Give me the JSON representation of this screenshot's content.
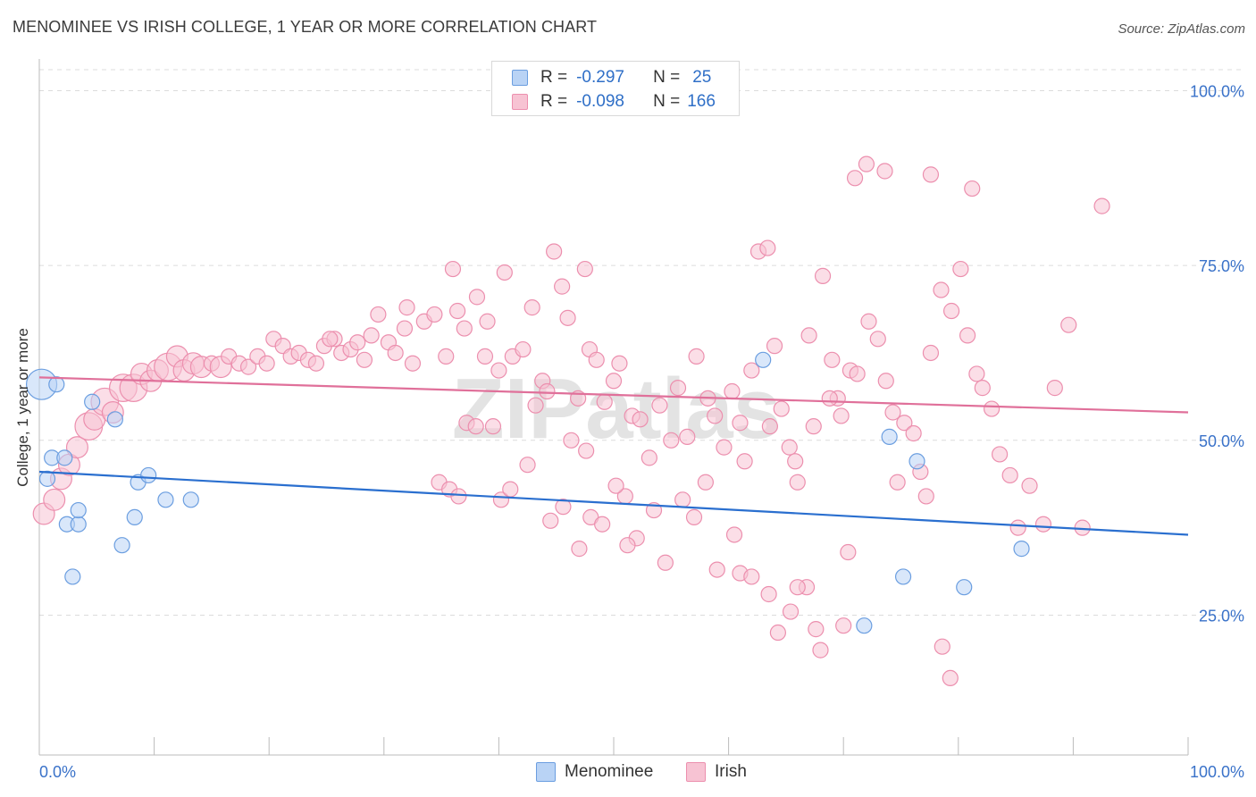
{
  "title": "MENOMINEE VS IRISH COLLEGE, 1 YEAR OR MORE CORRELATION CHART",
  "source": "Source: ZipAtlas.com",
  "watermark": "ZIPatlas",
  "legend": {
    "rows": [
      {
        "r_label": "R =",
        "r_value": "-0.297",
        "n_label": "N =",
        "n_value": "25"
      },
      {
        "r_label": "R =",
        "r_value": "-0.098",
        "n_label": "N =",
        "n_value": "166"
      }
    ]
  },
  "bottom_legend": [
    "Menominee",
    "Irish"
  ],
  "colors": {
    "menominee_fill": "#b9d3f5",
    "menominee_stroke": "#6b9ee0",
    "menominee_line": "#2a6fcf",
    "irish_fill": "#f7c3d3",
    "irish_stroke": "#ec8fae",
    "irish_line": "#e0709a",
    "tick_label": "#3a72c9"
  },
  "chart_data": {
    "type": "scatter",
    "title": "MENOMINEE VS IRISH COLLEGE, 1 YEAR OR MORE CORRELATION CHART",
    "xlabel": "",
    "ylabel": "College, 1 year or more",
    "xlim": [
      0,
      100
    ],
    "ylim": [
      5,
      103
    ],
    "x_tick_labels": [
      "0.0%",
      "100.0%"
    ],
    "y_ticks": [
      25,
      50,
      75,
      100
    ],
    "y_tick_labels": [
      "25.0%",
      "50.0%",
      "75.0%",
      "100.0%"
    ],
    "grid": true,
    "series": [
      {
        "name": "Menominee",
        "r": -0.297,
        "n": 25,
        "trend": {
          "x": [
            0,
            100
          ],
          "y": [
            45.5,
            36.5
          ]
        },
        "points": [
          [
            0.2,
            58.0,
            2.0
          ],
          [
            1.5,
            58.0,
            1.0
          ],
          [
            0.7,
            44.5,
            1.0
          ],
          [
            1.1,
            47.5,
            1.0
          ],
          [
            2.2,
            47.5,
            1.0
          ],
          [
            2.4,
            38.0,
            1.0
          ],
          [
            3.4,
            38.0,
            1.0
          ],
          [
            3.4,
            40.0,
            1.0
          ],
          [
            2.9,
            30.5,
            1.0
          ],
          [
            4.6,
            55.5,
            1.0
          ],
          [
            6.6,
            53.0,
            1.0
          ],
          [
            7.2,
            35.0,
            1.0
          ],
          [
            8.3,
            39.0,
            1.0
          ],
          [
            8.6,
            44.0,
            1.0
          ],
          [
            9.5,
            45.0,
            1.0
          ],
          [
            11.0,
            41.5,
            1.0
          ],
          [
            13.2,
            41.5,
            1.0
          ],
          [
            63.0,
            61.5,
            1.0
          ],
          [
            71.8,
            23.5,
            1.0
          ],
          [
            74.0,
            50.5,
            1.0
          ],
          [
            75.2,
            30.5,
            1.0
          ],
          [
            76.4,
            47.0,
            1.0
          ],
          [
            80.5,
            29.0,
            1.0
          ],
          [
            85.5,
            34.5,
            1.0
          ]
        ]
      },
      {
        "name": "Irish",
        "r": -0.098,
        "n": 166,
        "trend": {
          "x": [
            0,
            100
          ],
          "y": [
            59.0,
            54.0
          ]
        },
        "points": [
          [
            0.4,
            39.5,
            1.4
          ],
          [
            1.3,
            41.5,
            1.4
          ],
          [
            1.9,
            44.5,
            1.4
          ],
          [
            2.6,
            46.5,
            1.4
          ],
          [
            3.3,
            49.0,
            1.4
          ],
          [
            4.3,
            52.0,
            1.8
          ],
          [
            4.8,
            53.0,
            1.4
          ],
          [
            5.7,
            55.5,
            1.8
          ],
          [
            6.4,
            54.0,
            1.4
          ],
          [
            7.3,
            57.5,
            1.8
          ],
          [
            8.2,
            57.5,
            1.8
          ],
          [
            8.9,
            59.5,
            1.4
          ],
          [
            9.7,
            58.5,
            1.4
          ],
          [
            10.3,
            60.0,
            1.4
          ],
          [
            11.2,
            60.5,
            1.8
          ],
          [
            12.0,
            62.0,
            1.4
          ],
          [
            12.6,
            60.0,
            1.4
          ],
          [
            13.4,
            61.0,
            1.4
          ],
          [
            14.1,
            60.5,
            1.4
          ],
          [
            15.0,
            61.0,
            1.0
          ],
          [
            15.8,
            60.5,
            1.4
          ],
          [
            16.5,
            62.0,
            1.0
          ],
          [
            17.4,
            61.0,
            1.0
          ],
          [
            18.2,
            60.5,
            1.0
          ],
          [
            19.0,
            62.0,
            1.0
          ],
          [
            19.8,
            61.0,
            1.0
          ],
          [
            20.4,
            64.5,
            1.0
          ],
          [
            21.2,
            63.5,
            1.0
          ],
          [
            21.9,
            62.0,
            1.0
          ],
          [
            22.6,
            62.5,
            1.0
          ],
          [
            23.4,
            61.5,
            1.0
          ],
          [
            24.1,
            61.0,
            1.0
          ],
          [
            24.8,
            63.5,
            1.0
          ],
          [
            25.7,
            64.5,
            1.0
          ],
          [
            26.3,
            62.5,
            1.0
          ],
          [
            27.1,
            63.0,
            1.0
          ],
          [
            27.7,
            64.0,
            1.0
          ],
          [
            28.3,
            61.5,
            1.0
          ],
          [
            28.9,
            65.0,
            1.0
          ],
          [
            29.5,
            68.0,
            1.0
          ],
          [
            30.4,
            64.0,
            1.0
          ],
          [
            31.0,
            62.5,
            1.0
          ],
          [
            31.8,
            66.0,
            1.0
          ],
          [
            32.5,
            61.0,
            1.0
          ],
          [
            33.5,
            67.0,
            1.0
          ],
          [
            34.4,
            68.0,
            1.0
          ],
          [
            35.4,
            62.0,
            1.0
          ],
          [
            36.4,
            68.5,
            1.0
          ],
          [
            37.0,
            66.0,
            1.0
          ],
          [
            38.1,
            70.5,
            1.0
          ],
          [
            38.8,
            62.0,
            1.0
          ],
          [
            40.0,
            60.0,
            1.0
          ],
          [
            40.5,
            74.0,
            1.0
          ],
          [
            41.2,
            62.0,
            1.0
          ],
          [
            42.1,
            63.0,
            1.0
          ],
          [
            42.9,
            69.0,
            1.0
          ],
          [
            43.8,
            58.5,
            1.0
          ],
          [
            44.2,
            57.0,
            1.0
          ],
          [
            44.8,
            77.0,
            1.0
          ],
          [
            46.0,
            67.5,
            1.0
          ],
          [
            46.9,
            56.0,
            1.0
          ],
          [
            47.5,
            74.5,
            1.0
          ],
          [
            47.9,
            63.0,
            1.0
          ],
          [
            48.5,
            61.5,
            1.0
          ],
          [
            49.2,
            55.5,
            1.0
          ],
          [
            50.0,
            58.5,
            1.0
          ],
          [
            50.5,
            61.0,
            1.0
          ],
          [
            51.6,
            53.5,
            1.0
          ],
          [
            52.3,
            53.0,
            1.0
          ],
          [
            53.1,
            47.5,
            1.0
          ],
          [
            54.0,
            55.0,
            1.0
          ],
          [
            55.0,
            50.0,
            1.0
          ],
          [
            55.6,
            57.5,
            1.0
          ],
          [
            56.4,
            50.5,
            1.0
          ],
          [
            57.2,
            62.0,
            1.0
          ],
          [
            58.2,
            56.0,
            1.0
          ],
          [
            58.8,
            53.5,
            1.0
          ],
          [
            59.6,
            49.0,
            1.0
          ],
          [
            60.3,
            57.0,
            1.0
          ],
          [
            61.0,
            52.5,
            1.0
          ],
          [
            61.4,
            47.0,
            1.0
          ],
          [
            62.0,
            60.0,
            1.0
          ],
          [
            62.6,
            77.0,
            1.0
          ],
          [
            63.4,
            77.5,
            1.0
          ],
          [
            64.0,
            63.5,
            1.0
          ],
          [
            64.6,
            54.5,
            1.0
          ],
          [
            65.3,
            49.0,
            1.0
          ],
          [
            66.0,
            44.0,
            1.0
          ],
          [
            67.0,
            65.0,
            1.0
          ],
          [
            68.2,
            73.5,
            1.0
          ],
          [
            69.0,
            61.5,
            1.0
          ],
          [
            69.5,
            56.0,
            1.0
          ],
          [
            70.6,
            60.0,
            1.0
          ],
          [
            71.2,
            59.5,
            1.0
          ],
          [
            72.2,
            67.0,
            1.0
          ],
          [
            73.0,
            64.5,
            1.0
          ],
          [
            73.7,
            58.5,
            1.0
          ],
          [
            74.3,
            54.0,
            1.0
          ],
          [
            74.7,
            44.0,
            1.0
          ],
          [
            75.3,
            52.5,
            1.0
          ],
          [
            76.1,
            51.0,
            1.0
          ],
          [
            76.7,
            45.5,
            1.0
          ],
          [
            77.2,
            42.0,
            1.0
          ],
          [
            77.6,
            62.5,
            1.0
          ],
          [
            78.5,
            71.5,
            1.0
          ],
          [
            79.4,
            68.5,
            1.0
          ],
          [
            80.2,
            74.5,
            1.0
          ],
          [
            80.8,
            65.0,
            1.0
          ],
          [
            81.6,
            59.5,
            1.0
          ],
          [
            82.1,
            57.5,
            1.0
          ],
          [
            82.9,
            54.5,
            1.0
          ],
          [
            83.6,
            48.0,
            1.0
          ],
          [
            84.5,
            45.0,
            1.0
          ],
          [
            85.2,
            37.5,
            1.0
          ],
          [
            86.2,
            43.5,
            1.0
          ],
          [
            87.4,
            38.0,
            1.0
          ],
          [
            88.4,
            57.5,
            1.0
          ],
          [
            89.6,
            66.5,
            1.0
          ],
          [
            90.8,
            37.5,
            1.0
          ],
          [
            92.5,
            83.5,
            1.0
          ],
          [
            25.3,
            64.5,
            1.0
          ],
          [
            32.0,
            69.0,
            1.0
          ],
          [
            36.0,
            74.5,
            1.0
          ],
          [
            39.0,
            67.0,
            1.0
          ],
          [
            45.5,
            72.0,
            1.0
          ],
          [
            51.0,
            42.0,
            1.0
          ],
          [
            52.0,
            36.0,
            1.0
          ],
          [
            53.5,
            40.0,
            1.0
          ],
          [
            54.5,
            32.5,
            1.0
          ],
          [
            56.0,
            41.5,
            1.0
          ],
          [
            57.0,
            39.0,
            1.0
          ],
          [
            59.0,
            31.5,
            1.0
          ],
          [
            60.5,
            36.5,
            1.0
          ],
          [
            61.0,
            31.0,
            1.0
          ],
          [
            62.0,
            30.5,
            1.0
          ],
          [
            63.5,
            28.0,
            1.0
          ],
          [
            64.3,
            22.5,
            1.0
          ],
          [
            65.4,
            25.5,
            1.0
          ],
          [
            66.8,
            29.0,
            1.0
          ],
          [
            67.6,
            23.0,
            1.0
          ],
          [
            73.6,
            88.5,
            1.0
          ],
          [
            77.6,
            88.0,
            1.0
          ],
          [
            81.2,
            86.0,
            1.0
          ],
          [
            72.0,
            89.5,
            1.0
          ],
          [
            71.0,
            87.5,
            1.0
          ],
          [
            78.6,
            20.5,
            1.0
          ],
          [
            79.3,
            16.0,
            1.0
          ],
          [
            70.0,
            23.5,
            1.0
          ],
          [
            68.0,
            20.0,
            1.0
          ],
          [
            66.0,
            29.0,
            1.0
          ],
          [
            34.8,
            44.0,
            1.0
          ],
          [
            35.7,
            43.0,
            1.0
          ],
          [
            36.5,
            42.0,
            1.0
          ],
          [
            37.2,
            52.5,
            1.0
          ],
          [
            38.0,
            52.0,
            1.0
          ],
          [
            39.5,
            52.0,
            1.0
          ],
          [
            40.2,
            41.5,
            1.0
          ],
          [
            41.0,
            43.0,
            1.0
          ],
          [
            42.5,
            46.5,
            1.0
          ],
          [
            43.2,
            55.0,
            1.0
          ],
          [
            47.0,
            34.5,
            1.0
          ],
          [
            48.0,
            39.0,
            1.0
          ],
          [
            49.0,
            38.0,
            1.0
          ],
          [
            50.2,
            43.5,
            1.0
          ],
          [
            51.2,
            35.0,
            1.0
          ],
          [
            44.5,
            38.5,
            1.0
          ],
          [
            45.6,
            40.5,
            1.0
          ],
          [
            46.3,
            50.0,
            1.0
          ],
          [
            47.6,
            48.5,
            1.0
          ],
          [
            58.0,
            44.0,
            1.0
          ],
          [
            63.6,
            52.0,
            1.0
          ],
          [
            65.8,
            47.0,
            1.0
          ],
          [
            67.4,
            52.0,
            1.0
          ],
          [
            68.8,
            56.0,
            1.0
          ],
          [
            69.8,
            53.5,
            1.0
          ],
          [
            70.4,
            34.0,
            1.0
          ]
        ]
      }
    ]
  }
}
